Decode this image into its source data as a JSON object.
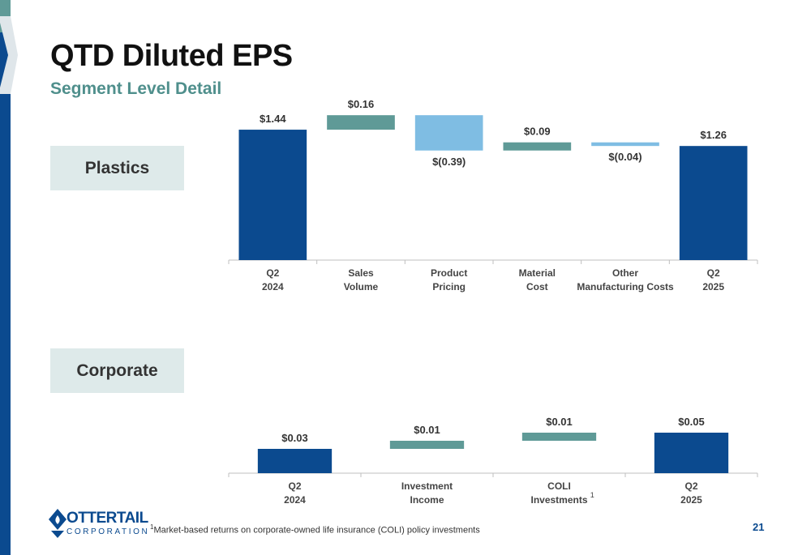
{
  "title": "QTD Diluted EPS",
  "subtitle": "Segment Level Detail",
  "segments": {
    "plastics": "Plastics",
    "corporate": "Corporate"
  },
  "footnote": {
    "mark": "1",
    "text": "Market-based returns on corporate-owned life insurance (COLI) policy investments"
  },
  "page_number": "21",
  "logo": {
    "name": "OTTERTAIL",
    "tagline": "CORPORATION"
  },
  "colors": {
    "navy": "#0b4a8f",
    "teal": "#5f9a97",
    "lightblue": "#7fbde3",
    "skyblue": "#7fbde3"
  },
  "chart_data": [
    {
      "type": "bar",
      "chart_style": "waterfall",
      "segment": "Plastics",
      "categories": [
        [
          "Q2",
          "2024"
        ],
        [
          "Sales",
          "Volume"
        ],
        [
          "Product",
          "Pricing"
        ],
        [
          "Material",
          "Cost"
        ],
        [
          "Other",
          "Manufacturing Costs"
        ],
        [
          "Q2",
          "2025"
        ]
      ],
      "values": [
        1.44,
        0.16,
        -0.39,
        0.09,
        -0.04,
        1.26
      ],
      "kinds": [
        "total",
        "delta",
        "delta",
        "delta",
        "delta",
        "total"
      ],
      "data_labels": [
        "$1.44",
        "$0.16",
        "$(0.39)",
        "$0.09",
        "$(0.04)",
        "$1.26"
      ],
      "colors": [
        "#0b4a8f",
        "#5f9a97",
        "#7fbde3",
        "#5f9a97",
        "#7fbde3",
        "#0b4a8f"
      ],
      "ylim": [
        0,
        1.7
      ]
    },
    {
      "type": "bar",
      "chart_style": "waterfall",
      "segment": "Corporate",
      "categories": [
        [
          "Q2",
          "2024"
        ],
        [
          "Investment",
          "Income"
        ],
        [
          "COLI",
          "Investments"
        ],
        [
          "Q2",
          "2025"
        ]
      ],
      "superscripts": [
        "",
        "",
        "1",
        ""
      ],
      "values": [
        0.03,
        0.01,
        0.01,
        0.05
      ],
      "kinds": [
        "total",
        "delta",
        "delta",
        "total"
      ],
      "data_labels": [
        "$0.03",
        "$0.01",
        "$0.01",
        "$0.05"
      ],
      "colors": [
        "#0b4a8f",
        "#5f9a97",
        "#5f9a97",
        "#0b4a8f"
      ],
      "ylim": [
        0,
        0.09
      ]
    }
  ]
}
